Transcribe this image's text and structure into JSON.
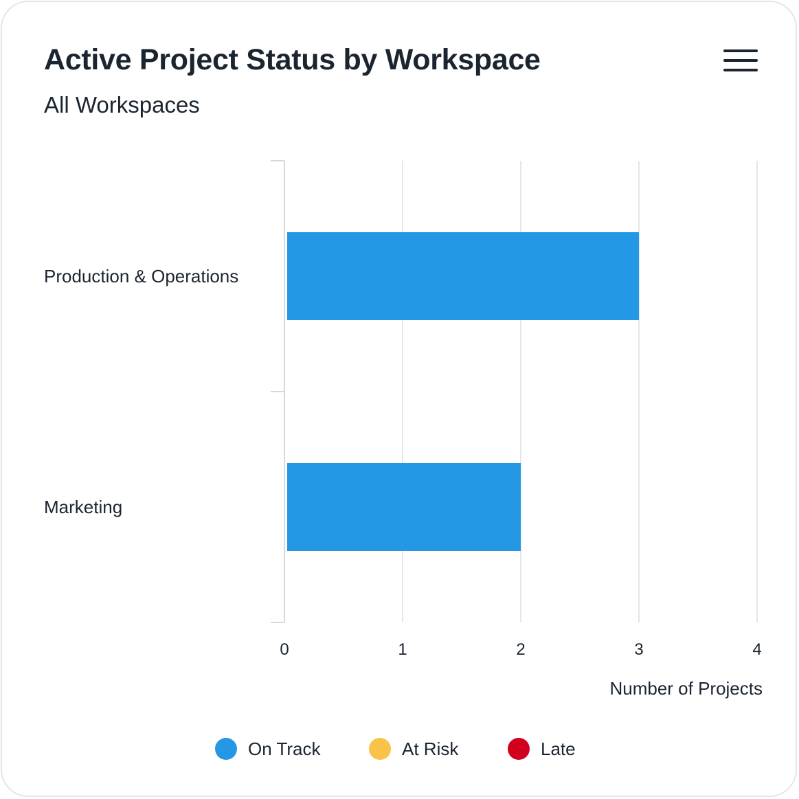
{
  "card": {
    "title": "Active Project Status by Workspace",
    "subtitle": "All Workspaces"
  },
  "menu": {
    "icon": "hamburger-menu-icon"
  },
  "chart_data": {
    "type": "bar",
    "orientation": "horizontal",
    "categories": [
      "Production & Operations",
      "Marketing"
    ],
    "series": [
      {
        "name": "On Track",
        "values": [
          3,
          2
        ],
        "color": "#2498e4"
      },
      {
        "name": "At Risk",
        "values": [
          0,
          0
        ],
        "color": "#f8c348"
      },
      {
        "name": "Late",
        "values": [
          0,
          0
        ],
        "color": "#d2001f"
      }
    ],
    "xlabel": "Number of Projects",
    "ylabel": "",
    "xlim": [
      0,
      4
    ],
    "xticks": [
      "0",
      "1",
      "2",
      "3",
      "4"
    ],
    "grid": true,
    "stacked": true,
    "legend_position": "bottom"
  },
  "legend": {
    "items": [
      {
        "label": "On Track",
        "color": "#2498e4"
      },
      {
        "label": "At Risk",
        "color": "#f8c348"
      },
      {
        "label": "Late",
        "color": "#d2001f"
      }
    ]
  }
}
